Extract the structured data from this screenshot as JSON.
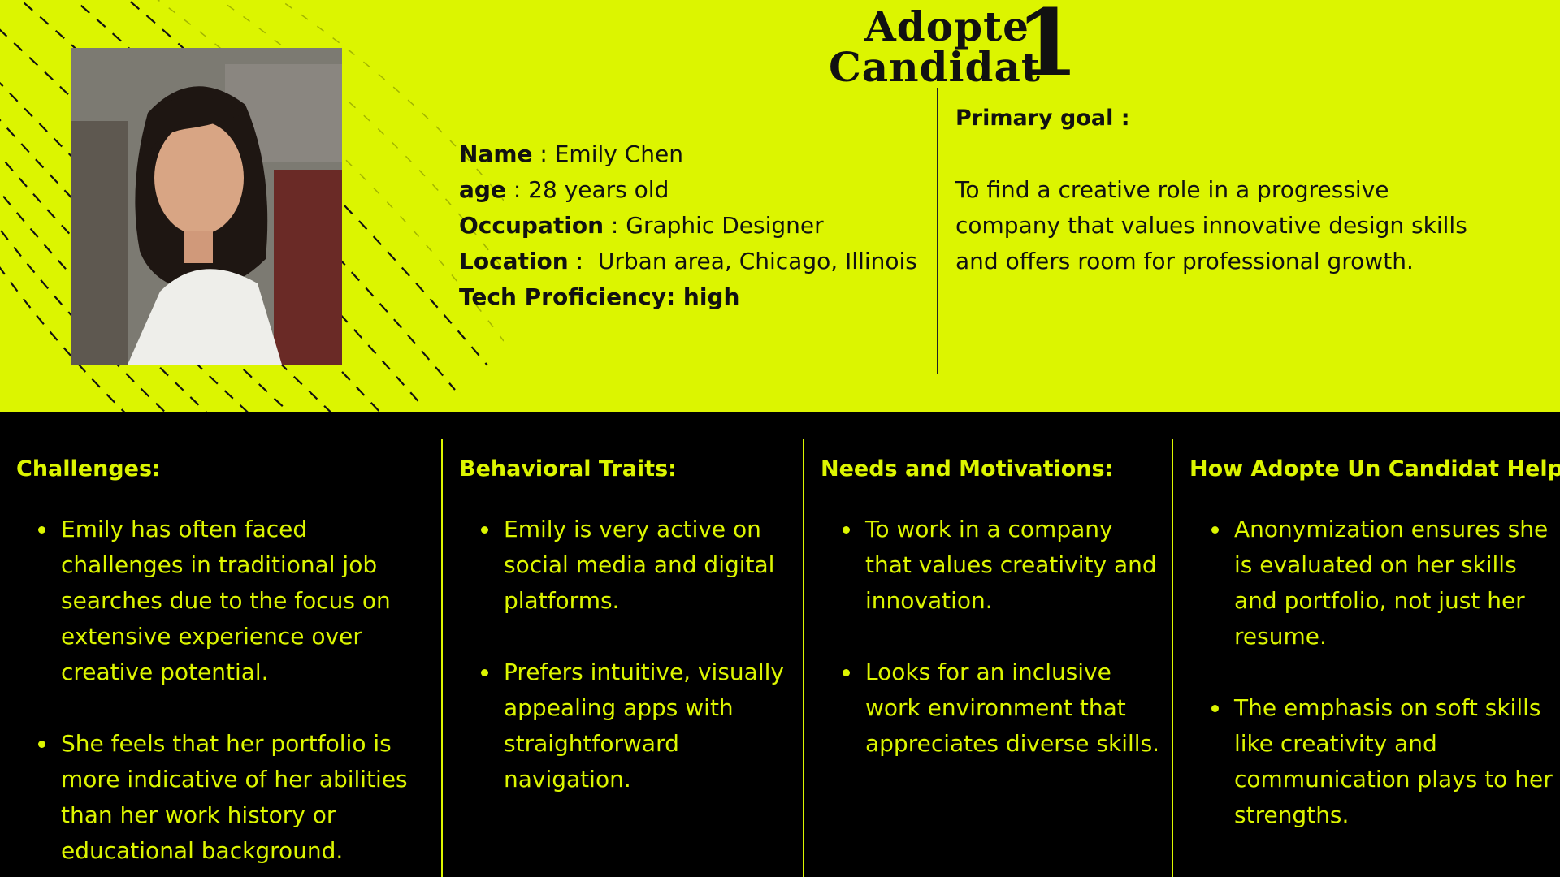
{
  "logo": {
    "word1": "Adopte",
    "word2": "Candidat",
    "numeral": "1"
  },
  "profile": {
    "photo_alt": "",
    "name_label": "Name",
    "name_value": "Emily Chen",
    "age_label": "age",
    "age_value": "28 years old",
    "occupation_label": "Occupation",
    "occupation_value": "Graphic Designer",
    "location_label": "Location",
    "location_value": "Urban area, Chicago, Illinois",
    "tech": "Tech Proficiency: high"
  },
  "goal": {
    "title": "Primary goal :",
    "text": "To find a creative role in a progressive company that values innovative design skills and offers room for professional growth."
  },
  "columns": [
    {
      "title": "Challenges:",
      "items": [
        "Emily has often faced challenges in traditional job searches due to the focus on extensive experience over creative potential.",
        "She feels that her portfolio is more indicative of her abilities than her work history or educational background."
      ]
    },
    {
      "title": "Behavioral Traits:",
      "items": [
        "Emily is very active on social media and digital platforms.",
        "Prefers intuitive, visually appealing apps with straightforward navigation."
      ]
    },
    {
      "title": "Needs and Motivations:",
      "items": [
        "To work in a company that values creativity and innovation.",
        "Looks for an inclusive work environment that appreciates diverse  skills."
      ]
    },
    {
      "title": "How Adopte Un Candidat Helps:",
      "items": [
        "Anonymization ensures she is evaluated on her skills and portfolio, not just her resume.",
        "The emphasis on soft skills like creativity and communication plays to her strengths."
      ]
    }
  ],
  "colors": {
    "lime": "#dcf500",
    "black": "#000000",
    "ink": "#111111"
  }
}
